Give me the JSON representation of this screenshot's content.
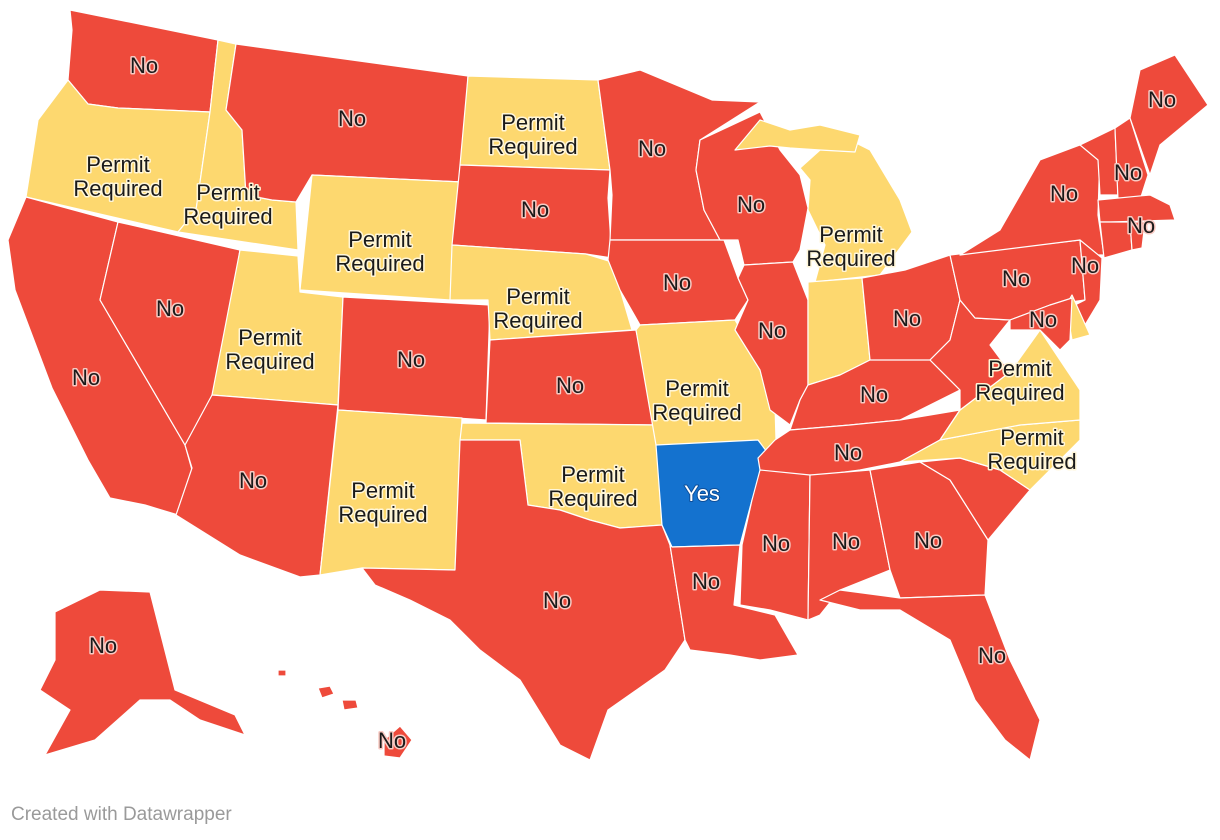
{
  "footer": {
    "credit": "Created with Datawrapper"
  },
  "legend_colors": {
    "No": "#ee4a3b",
    "Permit Required": "#fdd86f",
    "Yes": "#1472cf"
  },
  "states": [
    {
      "id": "WA",
      "status": "No"
    },
    {
      "id": "OR",
      "status": "Permit Required"
    },
    {
      "id": "CA",
      "status": "No"
    },
    {
      "id": "ID",
      "status": "Permit Required"
    },
    {
      "id": "NV",
      "status": "No"
    },
    {
      "id": "MT",
      "status": "No"
    },
    {
      "id": "WY",
      "status": "Permit Required"
    },
    {
      "id": "UT",
      "status": "Permit Required"
    },
    {
      "id": "AZ",
      "status": "No"
    },
    {
      "id": "CO",
      "status": "No"
    },
    {
      "id": "NM",
      "status": "Permit Required"
    },
    {
      "id": "ND",
      "status": "Permit Required"
    },
    {
      "id": "SD",
      "status": "No"
    },
    {
      "id": "NE",
      "status": "Permit Required"
    },
    {
      "id": "KS",
      "status": "No"
    },
    {
      "id": "OK",
      "status": "Permit Required"
    },
    {
      "id": "TX",
      "status": "No"
    },
    {
      "id": "MN",
      "status": "No"
    },
    {
      "id": "IA",
      "status": "No"
    },
    {
      "id": "MO",
      "status": "Permit Required"
    },
    {
      "id": "AR",
      "status": "Yes"
    },
    {
      "id": "LA",
      "status": "No"
    },
    {
      "id": "WI",
      "status": "No"
    },
    {
      "id": "IL",
      "status": "No"
    },
    {
      "id": "MI",
      "status": "Permit Required"
    },
    {
      "id": "IN",
      "status": "Permit Required"
    },
    {
      "id": "OH",
      "status": "No"
    },
    {
      "id": "KY",
      "status": "No"
    },
    {
      "id": "TN",
      "status": "No"
    },
    {
      "id": "MS",
      "status": "No"
    },
    {
      "id": "AL",
      "status": "No"
    },
    {
      "id": "GA",
      "status": "No"
    },
    {
      "id": "FL",
      "status": "No"
    },
    {
      "id": "SC",
      "status": "No"
    },
    {
      "id": "NC",
      "status": "Permit Required"
    },
    {
      "id": "VA",
      "status": "Permit Required"
    },
    {
      "id": "WV",
      "status": "No"
    },
    {
      "id": "PA",
      "status": "No"
    },
    {
      "id": "NY",
      "status": "No"
    },
    {
      "id": "NJ",
      "status": "No"
    },
    {
      "id": "DE",
      "status": "Permit Required"
    },
    {
      "id": "MD",
      "status": "No"
    },
    {
      "id": "VT",
      "status": "No"
    },
    {
      "id": "NH",
      "status": "No"
    },
    {
      "id": "ME",
      "status": "No"
    },
    {
      "id": "MA",
      "status": "No"
    },
    {
      "id": "CT",
      "status": "No"
    },
    {
      "id": "RI",
      "status": "No"
    },
    {
      "id": "AK",
      "status": "No"
    },
    {
      "id": "HI",
      "status": "No"
    }
  ]
}
